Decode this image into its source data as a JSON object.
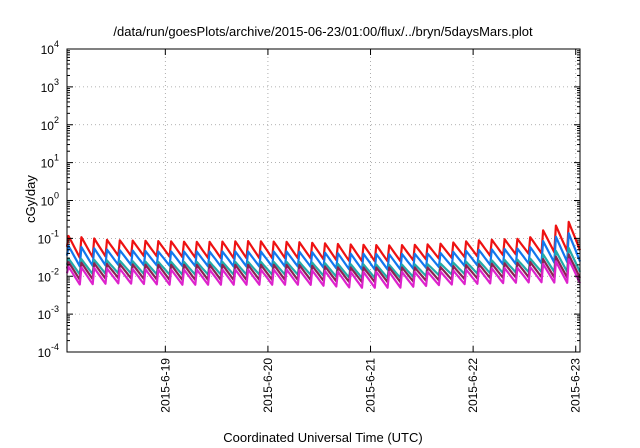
{
  "chart_data": {
    "type": "line",
    "title": "/data/run/goesPlots/archive/2015-06-23/01:00/flux/../bryn/5daysMars.plot",
    "xlabel": "Coordinated Universal Time (UTC)",
    "ylabel": "cGy/day",
    "yscale": "log",
    "ylim": [
      0.0001,
      10000
    ],
    "y_ticks": [
      {
        "value": 0.0001,
        "base": "10",
        "exp": "-4"
      },
      {
        "value": 0.001,
        "base": "10",
        "exp": "-3"
      },
      {
        "value": 0.01,
        "base": "10",
        "exp": "-2"
      },
      {
        "value": 0.1,
        "base": "10",
        "exp": "-1"
      },
      {
        "value": 1,
        "base": "10",
        "exp": "0"
      },
      {
        "value": 10,
        "base": "10",
        "exp": "1"
      },
      {
        "value": 100,
        "base": "10",
        "exp": "2"
      },
      {
        "value": 1000,
        "base": "10",
        "exp": "3"
      },
      {
        "value": 10000,
        "base": "10",
        "exp": "4"
      }
    ],
    "xlim": [
      "2015-06-18 01:00",
      "2015-06-23 01:00"
    ],
    "x_ticks": [
      "2015-6-19",
      "2015-6-20",
      "2015-6-21",
      "2015-6-22",
      "2015-6-23"
    ],
    "grid": true,
    "legend": "none",
    "sawtooth_period_hours": 3,
    "series": [
      {
        "color": "#ee1111",
        "start": 0.06,
        "peak": [
          0.12,
          0.09,
          0.085,
          0.08,
          0.085,
          0.08,
          0.07,
          0.065,
          0.07,
          0.09,
          0.1,
          0.3
        ],
        "trough": [
          0.03,
          0.035,
          0.033,
          0.03,
          0.03,
          0.03,
          0.025,
          0.025,
          0.03,
          0.035,
          0.04,
          0.05
        ]
      },
      {
        "color": "#1177ee",
        "start": 0.035,
        "peak": [
          0.065,
          0.05,
          0.045,
          0.045,
          0.045,
          0.045,
          0.04,
          0.038,
          0.04,
          0.05,
          0.055,
          0.15
        ],
        "trough": [
          0.018,
          0.02,
          0.019,
          0.018,
          0.018,
          0.018,
          0.015,
          0.015,
          0.018,
          0.02,
          0.022,
          0.025
        ]
      },
      {
        "color": "#22aaaa",
        "start": 0.02,
        "peak": [
          0.03,
          0.026,
          0.024,
          0.024,
          0.024,
          0.024,
          0.021,
          0.02,
          0.021,
          0.026,
          0.028,
          0.06
        ],
        "trough": [
          0.011,
          0.012,
          0.011,
          0.011,
          0.011,
          0.011,
          0.009,
          0.009,
          0.011,
          0.012,
          0.013,
          0.013
        ]
      },
      {
        "color": "#8b2252",
        "start": 0.016,
        "peak": [
          0.024,
          0.021,
          0.02,
          0.02,
          0.02,
          0.02,
          0.017,
          0.017,
          0.017,
          0.021,
          0.023,
          0.04
        ],
        "trough": [
          0.008,
          0.009,
          0.008,
          0.008,
          0.008,
          0.008,
          0.007,
          0.007,
          0.008,
          0.009,
          0.0095,
          0.009
        ]
      },
      {
        "color": "#dd22cc",
        "start": 0.012,
        "peak": [
          0.018,
          0.016,
          0.015,
          0.015,
          0.015,
          0.015,
          0.013,
          0.013,
          0.013,
          0.016,
          0.017,
          0.03
        ],
        "trough": [
          0.006,
          0.0065,
          0.006,
          0.006,
          0.006,
          0.006,
          0.005,
          0.005,
          0.006,
          0.0065,
          0.007,
          0.0065
        ]
      }
    ]
  }
}
